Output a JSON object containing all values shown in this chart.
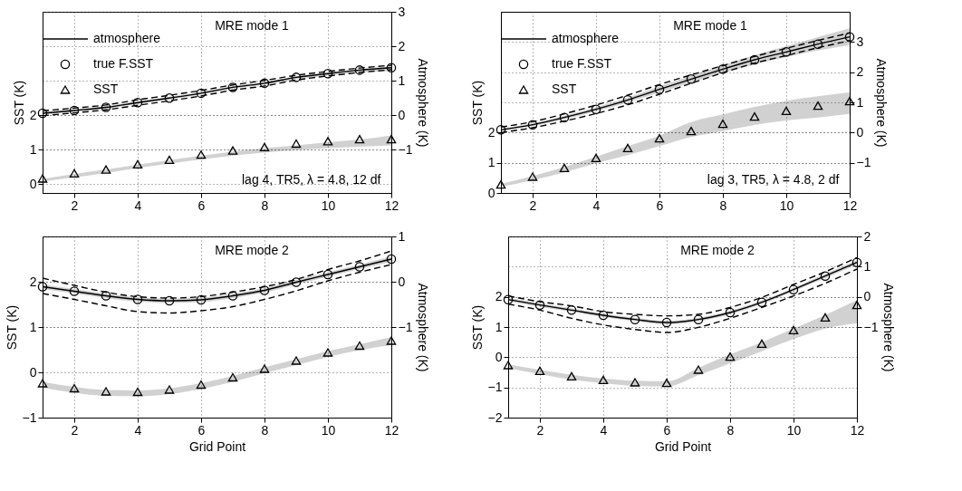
{
  "chart_data": [
    {
      "type": "line",
      "annotations": [
        "MRE mode 1",
        "lag 4,  TR5, λ = 4.8, 12 df"
      ],
      "ylabel": "SST (K)",
      "y2label": "Atmosphere (K)",
      "x": [
        1,
        2,
        3,
        4,
        5,
        6,
        7,
        8,
        9,
        10,
        11,
        12
      ],
      "xlim": [
        1,
        12
      ],
      "xticks": [
        2,
        4,
        6,
        8,
        10,
        12
      ],
      "ylim": [
        -0.25,
        5
      ],
      "yticks": [
        0,
        1,
        2
      ],
      "y2lim": [
        -2.25,
        3
      ],
      "y2ticks": [
        -1,
        0,
        1,
        2,
        3
      ],
      "grid": true,
      "legend": "top left",
      "series": [
        {
          "name": "atmosphere",
          "type": "line",
          "axis": "y2",
          "color": "#000000",
          "line_style": "solid",
          "values": [
            0.06,
            0.14,
            0.23,
            0.37,
            0.5,
            0.64,
            0.81,
            0.93,
            1.1,
            1.21,
            1.31,
            1.38
          ],
          "lower": [
            0.02,
            0.1,
            0.19,
            0.33,
            0.46,
            0.6,
            0.77,
            0.89,
            1.04,
            1.15,
            1.24,
            1.28
          ],
          "upper": [
            0.1,
            0.18,
            0.27,
            0.41,
            0.54,
            0.68,
            0.85,
            0.97,
            1.13,
            1.24,
            1.34,
            1.43
          ]
        },
        {
          "type": "line",
          "axis": "y2",
          "color": "#000000",
          "line_style": "dashed",
          "values": [
            0.13,
            0.21,
            0.3,
            0.45,
            0.58,
            0.72,
            0.88,
            1.01,
            1.16,
            1.27,
            1.37,
            1.45
          ]
        },
        {
          "type": "line",
          "axis": "y2",
          "color": "#000000",
          "line_style": "dashed",
          "values": [
            -0.01,
            0.07,
            0.16,
            0.29,
            0.42,
            0.56,
            0.73,
            0.85,
            1.02,
            1.14,
            1.24,
            1.32
          ]
        },
        {
          "name": "true F.SST",
          "type": "scatter",
          "axis": "y2",
          "marker": "circle",
          "color": "#000000",
          "values": [
            0.06,
            0.14,
            0.23,
            0.37,
            0.5,
            0.64,
            0.81,
            0.93,
            1.1,
            1.21,
            1.31,
            1.38
          ]
        },
        {
          "name": "SST",
          "type": "scatter",
          "marker": "triangle",
          "color": "#000000",
          "values": [
            0.17,
            0.32,
            0.43,
            0.58,
            0.71,
            0.86,
            0.98,
            1.08,
            1.18,
            1.25,
            1.31,
            1.31
          ],
          "lower": [
            0.08,
            0.2,
            0.33,
            0.47,
            0.6,
            0.72,
            0.83,
            0.92,
            0.99,
            1.05,
            1.09,
            1.13
          ],
          "upper": [
            0.16,
            0.3,
            0.43,
            0.57,
            0.7,
            0.83,
            0.95,
            1.05,
            1.13,
            1.22,
            1.3,
            1.42
          ]
        }
      ]
    },
    {
      "type": "line",
      "annotations": [
        "MRE mode 1",
        "lag 3,  TR5, λ = 4.8, 2 df"
      ],
      "ylabel": "SST (K)",
      "y2label": "Atmosphere (K)",
      "x": [
        1,
        2,
        3,
        4,
        5,
        6,
        7,
        8,
        9,
        10,
        11,
        12
      ],
      "xlim": [
        1,
        12
      ],
      "xticks": [
        2,
        4,
        6,
        8,
        10,
        12
      ],
      "ylim": [
        0,
        6
      ],
      "yticks": [
        0,
        1,
        2
      ],
      "y2lim": [
        -2,
        4
      ],
      "y2ticks": [
        -1,
        0,
        1,
        2,
        3
      ],
      "grid": true,
      "legend": "top left",
      "series": [
        {
          "name": "atmosphere",
          "type": "line",
          "axis": "y2",
          "color": "#000000",
          "line_style": "solid",
          "values": [
            0.09,
            0.26,
            0.5,
            0.77,
            1.08,
            1.43,
            1.77,
            2.1,
            2.41,
            2.67,
            2.93,
            3.17
          ],
          "lower": [
            0.05,
            0.21,
            0.44,
            0.7,
            1.0,
            1.33,
            1.66,
            1.97,
            2.25,
            2.5,
            2.72,
            2.9
          ],
          "upper": [
            0.13,
            0.31,
            0.56,
            0.84,
            1.16,
            1.53,
            1.88,
            2.23,
            2.57,
            2.86,
            3.16,
            3.45
          ]
        },
        {
          "type": "line",
          "axis": "y2",
          "color": "#000000",
          "line_style": "dashed",
          "values": [
            0.18,
            0.36,
            0.62,
            0.91,
            1.24,
            1.59,
            1.91,
            2.22,
            2.52,
            2.79,
            3.05,
            3.3
          ]
        },
        {
          "type": "line",
          "axis": "y2",
          "color": "#000000",
          "line_style": "dashed",
          "values": [
            0.0,
            0.16,
            0.38,
            0.63,
            0.92,
            1.27,
            1.63,
            1.98,
            2.3,
            2.55,
            2.81,
            3.04
          ]
        },
        {
          "name": "true F.SST",
          "type": "scatter",
          "axis": "y2",
          "marker": "circle",
          "color": "#000000",
          "values": [
            0.09,
            0.26,
            0.5,
            0.77,
            1.08,
            1.43,
            1.77,
            2.1,
            2.41,
            2.67,
            2.93,
            3.17
          ]
        },
        {
          "name": "SST",
          "type": "scatter",
          "marker": "triangle",
          "color": "#000000",
          "values": [
            0.28,
            0.54,
            0.83,
            1.16,
            1.49,
            1.81,
            2.05,
            2.29,
            2.53,
            2.72,
            2.89,
            3.04
          ],
          "lower": [
            0.2,
            0.42,
            0.68,
            0.98,
            1.25,
            1.55,
            1.85,
            2.05,
            2.25,
            2.4,
            2.5,
            2.62
          ],
          "upper": [
            0.3,
            0.56,
            0.86,
            1.2,
            1.55,
            1.9,
            2.35,
            2.6,
            2.85,
            3.05,
            3.2,
            3.33
          ]
        }
      ]
    },
    {
      "type": "line",
      "annotations": [
        "MRE mode 2"
      ],
      "xlabel": "Grid Point",
      "ylabel": "SST (K)",
      "y2label": "Atmosphere (K)",
      "x": [
        1,
        2,
        3,
        4,
        5,
        6,
        7,
        8,
        9,
        10,
        11,
        12
      ],
      "xlim": [
        1,
        12
      ],
      "xticks": [
        2,
        4,
        6,
        8,
        10,
        12
      ],
      "ylim": [
        -1,
        3
      ],
      "yticks": [
        -1,
        0,
        1,
        2
      ],
      "y2lim": [
        -3,
        1
      ],
      "y2ticks": [
        -1,
        0,
        1
      ],
      "grid": true,
      "series": [
        {
          "type": "line",
          "axis": "y2",
          "color": "#000000",
          "line_style": "solid",
          "values": [
            -0.11,
            -0.21,
            -0.31,
            -0.39,
            -0.42,
            -0.4,
            -0.31,
            -0.19,
            -0.01,
            0.16,
            0.33,
            0.5
          ],
          "lower": [
            -0.16,
            -0.26,
            -0.36,
            -0.44,
            -0.47,
            -0.45,
            -0.36,
            -0.24,
            -0.06,
            0.11,
            0.28,
            0.44
          ],
          "upper": [
            -0.06,
            -0.16,
            -0.26,
            -0.34,
            -0.37,
            -0.35,
            -0.26,
            -0.14,
            0.04,
            0.21,
            0.38,
            0.56
          ]
        },
        {
          "type": "line",
          "axis": "y2",
          "color": "#000000",
          "line_style": "dashed",
          "values": [
            0.08,
            -0.08,
            -0.23,
            -0.33,
            -0.36,
            -0.33,
            -0.23,
            -0.11,
            0.05,
            0.27,
            0.46,
            0.68
          ]
        },
        {
          "type": "line",
          "axis": "y2",
          "color": "#000000",
          "line_style": "dashed",
          "values": [
            -0.26,
            -0.39,
            -0.53,
            -0.66,
            -0.69,
            -0.64,
            -0.55,
            -0.39,
            -0.2,
            0.02,
            0.21,
            0.38
          ]
        },
        {
          "type": "scatter",
          "axis": "y2",
          "marker": "circle",
          "color": "#000000",
          "values": [
            -0.11,
            -0.21,
            -0.31,
            -0.39,
            -0.42,
            -0.4,
            -0.31,
            -0.19,
            -0.01,
            0.16,
            0.33,
            0.5
          ]
        },
        {
          "type": "scatter",
          "marker": "triangle",
          "color": "#000000",
          "values": [
            -0.24,
            -0.35,
            -0.42,
            -0.43,
            -0.38,
            -0.27,
            -0.11,
            0.08,
            0.26,
            0.44,
            0.59,
            0.7
          ],
          "lower": [
            -0.34,
            -0.45,
            -0.52,
            -0.53,
            -0.48,
            -0.37,
            -0.21,
            -0.02,
            0.16,
            0.34,
            0.49,
            0.6
          ],
          "upper": [
            -0.21,
            -0.32,
            -0.39,
            -0.4,
            -0.35,
            -0.24,
            -0.08,
            0.11,
            0.29,
            0.47,
            0.62,
            0.78
          ]
        }
      ]
    },
    {
      "type": "line",
      "annotations": [
        "MRE mode 2"
      ],
      "xlabel": "Grid Point",
      "ylabel": "SST (K)",
      "y2label": "Atmosphere (K)",
      "x": [
        1,
        2,
        3,
        4,
        5,
        6,
        7,
        8,
        9,
        10,
        11,
        12
      ],
      "xlim": [
        1,
        12
      ],
      "xticks": [
        2,
        4,
        6,
        8,
        10,
        12
      ],
      "ylim": [
        -2,
        4
      ],
      "yticks": [
        -2,
        -1,
        0,
        1,
        2
      ],
      "y2lim": [
        -4,
        2
      ],
      "y2ticks": [
        -1,
        0,
        1,
        2
      ],
      "grid": true,
      "series": [
        {
          "type": "line",
          "axis": "y2",
          "color": "#000000",
          "line_style": "solid",
          "values": [
            -0.09,
            -0.27,
            -0.44,
            -0.61,
            -0.75,
            -0.85,
            -0.75,
            -0.52,
            -0.18,
            0.24,
            0.69,
            1.14
          ],
          "lower": [
            -0.15,
            -0.33,
            -0.5,
            -0.67,
            -0.81,
            -0.91,
            -0.81,
            -0.58,
            -0.24,
            0.18,
            0.62,
            1.06
          ],
          "upper": [
            -0.03,
            -0.21,
            -0.38,
            -0.55,
            -0.69,
            -0.79,
            -0.69,
            -0.46,
            -0.12,
            0.3,
            0.76,
            1.22
          ]
        },
        {
          "type": "line",
          "axis": "y2",
          "color": "#000000",
          "line_style": "dashed",
          "values": [
            0.03,
            -0.16,
            -0.3,
            -0.49,
            -0.58,
            -0.63,
            -0.58,
            -0.35,
            -0.02,
            0.41,
            0.83,
            1.3
          ]
        },
        {
          "type": "line",
          "axis": "y2",
          "color": "#000000",
          "line_style": "dashed",
          "values": [
            -0.24,
            -0.44,
            -0.71,
            -0.93,
            -1.08,
            -1.18,
            -1.01,
            -0.71,
            -0.35,
            0.03,
            0.45,
            0.92
          ]
        },
        {
          "type": "scatter",
          "axis": "y2",
          "marker": "circle",
          "color": "#000000",
          "values": [
            -0.09,
            -0.27,
            -0.44,
            -0.61,
            -0.75,
            -0.85,
            -0.75,
            -0.52,
            -0.18,
            0.24,
            0.69,
            1.14
          ]
        },
        {
          "type": "scatter",
          "marker": "triangle",
          "color": "#000000",
          "values": [
            -0.26,
            -0.45,
            -0.63,
            -0.75,
            -0.83,
            -0.85,
            -0.41,
            0.02,
            0.45,
            0.9,
            1.32,
            1.73
          ],
          "lower": [
            -0.36,
            -0.56,
            -0.74,
            -0.86,
            -0.95,
            -0.97,
            -0.6,
            -0.2,
            0.2,
            0.6,
            0.95,
            1.13
          ],
          "upper": [
            -0.24,
            -0.42,
            -0.58,
            -0.7,
            -0.78,
            -0.8,
            -0.35,
            0.1,
            0.5,
            0.95,
            1.4,
            1.89
          ]
        }
      ]
    }
  ]
}
